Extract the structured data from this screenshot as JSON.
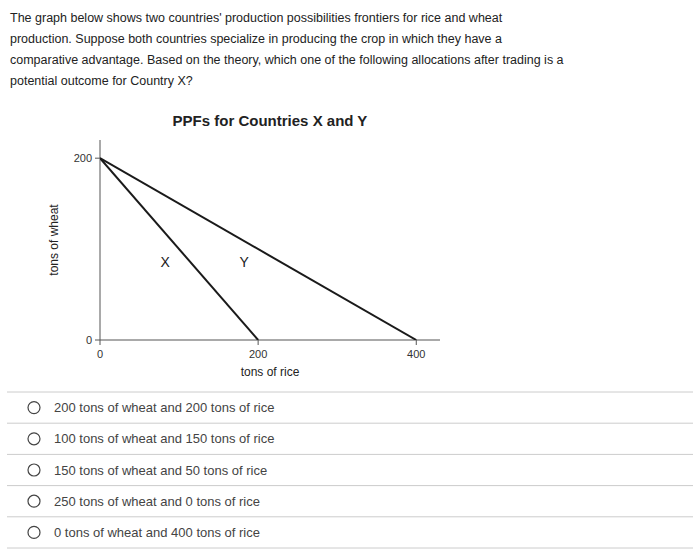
{
  "header_lines": [
    "The graph below shows two countries' production possibilities frontiers for rice and wheat",
    "production. Suppose both countries specialize in producing the crop in which they have a",
    "comparative advantage. Based on the theory, which one of the following allocations after trading is a",
    "potential outcome for Country X?"
  ],
  "options": [
    "200 tons of wheat and 200 tons of rice",
    "100 tons of wheat and 150 tons of rice",
    "150 tons of wheat and 50 tons of rice",
    "250 tons of wheat and 0 tons of rice",
    "0 tons of wheat and 400 tons of rice"
  ],
  "chart_data": {
    "type": "line",
    "title": "PPFs for Countries X and Y",
    "x_label": "tons of rice",
    "y_label": "tons of wheat",
    "series": [
      {
        "name": "X",
        "color": "#1a1a1a",
        "x": [
          0,
          200
        ],
        "values": [
          200,
          0
        ]
      },
      {
        "name": "Y",
        "color": "#1a1a1a",
        "x": [
          0,
          400
        ],
        "values": [
          200,
          0
        ]
      }
    ],
    "xlim": [
      0,
      430
    ],
    "ylim": [
      0,
      220
    ],
    "xticks": [
      0,
      200,
      400
    ],
    "yticks": [
      0,
      200
    ],
    "grid": false
  }
}
